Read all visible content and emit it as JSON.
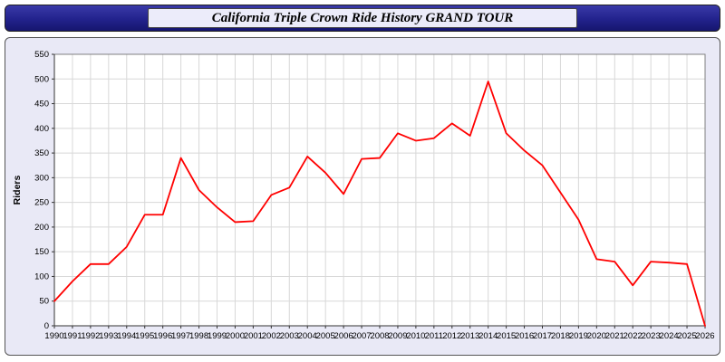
{
  "header": {
    "title": "California Triple Crown Ride History GRAND TOUR"
  },
  "colors": {
    "line": "#ff0000",
    "panel_bg": "#e9e9f6",
    "titlebar_bg": "#22228c",
    "plot_bg": "#ffffff",
    "grid": "#d8d8d8",
    "axis": "#808080"
  },
  "chart_data": {
    "type": "line",
    "title": "California Triple Crown Ride History GRAND TOUR",
    "xlabel": "",
    "ylabel": "Riders",
    "ylim": [
      0,
      550
    ],
    "ytick_step": 50,
    "grid": true,
    "legend_position": "none",
    "x": [
      1990,
      1991,
      1992,
      1993,
      1994,
      1995,
      1996,
      1997,
      1998,
      1999,
      2000,
      2001,
      2002,
      2003,
      2004,
      2005,
      2006,
      2007,
      2008,
      2009,
      2010,
      2011,
      2012,
      2013,
      2014,
      2015,
      2016,
      2017,
      2018,
      2019,
      2020,
      2021,
      2022,
      2023,
      2024,
      2025,
      2026
    ],
    "series": [
      {
        "name": "Riders",
        "color": "#ff0000",
        "values": [
          50,
          90,
          125,
          125,
          160,
          225,
          225,
          340,
          275,
          240,
          210,
          212,
          265,
          280,
          343,
          310,
          267,
          338,
          340,
          390,
          375,
          380,
          410,
          385,
          495,
          390,
          355,
          325,
          270,
          215,
          135,
          130,
          82,
          130,
          128,
          125,
          0
        ]
      }
    ]
  }
}
